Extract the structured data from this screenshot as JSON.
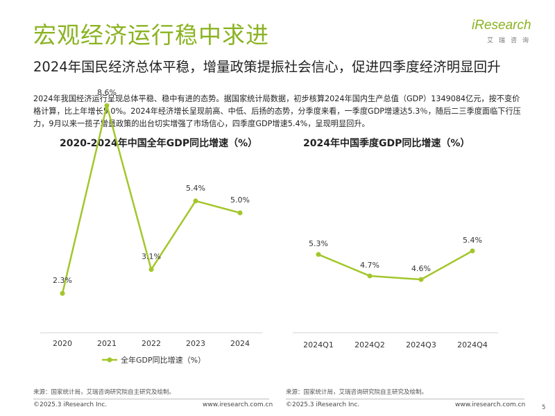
{
  "header": {
    "title": "宏观经济运行稳中求进",
    "logo_main": "iResearch",
    "logo_sub": "艾瑞咨询"
  },
  "subtitle": "2024年国民经济总体平稳，增量政策提振社会信心，促进四季度经济明显回升",
  "body_text": "2024年我国经济运行呈现总体平稳、稳中有进的态势。据国家统计局数据，初步核算2024年国内生产总值（GDP）1349084亿元，按不变价格计算，比上年增长5.0%。2024年经济增长呈现前高、中低、后扬的态势，分季度来看，一季度GDP增速达5.3％，随后二三季度面临下行压力，9月以来一揽子增量政策的出台切实增强了市场信心，四季度GDP增速5.4%，呈现明显回升。",
  "accent_color": "#a3c62a",
  "chart_data": [
    {
      "type": "line",
      "title": "2020-2024年中国全年GDP同比增速（%）",
      "categories": [
        "2020",
        "2021",
        "2022",
        "2023",
        "2024"
      ],
      "series": [
        {
          "name": "全年GDP同比增速（%）",
          "values": [
            2.3,
            8.6,
            3.1,
            5.4,
            5.0
          ]
        }
      ],
      "value_labels": [
        "2.3%",
        "8.6%",
        "3.1%",
        "5.4%",
        "5.0%"
      ],
      "ylim": [
        0,
        10
      ],
      "grid": false,
      "legend_position": "bottom"
    },
    {
      "type": "line",
      "title": "2024年中国季度GDP同比增速（%）",
      "categories": [
        "2024Q1",
        "2024Q2",
        "2024Q3",
        "2024Q4"
      ],
      "series": [
        {
          "values": [
            5.3,
            4.7,
            4.6,
            5.4
          ]
        }
      ],
      "value_labels": [
        "5.3%",
        "4.7%",
        "4.6%",
        "5.4%"
      ],
      "ylim": [
        0,
        10
      ],
      "grid": false
    }
  ],
  "sources": {
    "left": "来源：国家统计局，艾瑞咨询研究院自主研究及绘制。",
    "right": "来源：国家统计局，艾瑞咨询研究院自主研究及绘制。"
  },
  "footer": {
    "copyright_left": "©2025.3 iResearch Inc.",
    "url_left": "www.iresearch.com.cn",
    "copyright_right": "©2025.3 iResearch Inc.",
    "url_right": "www.iresearch.com.cn",
    "page_number": "5"
  }
}
